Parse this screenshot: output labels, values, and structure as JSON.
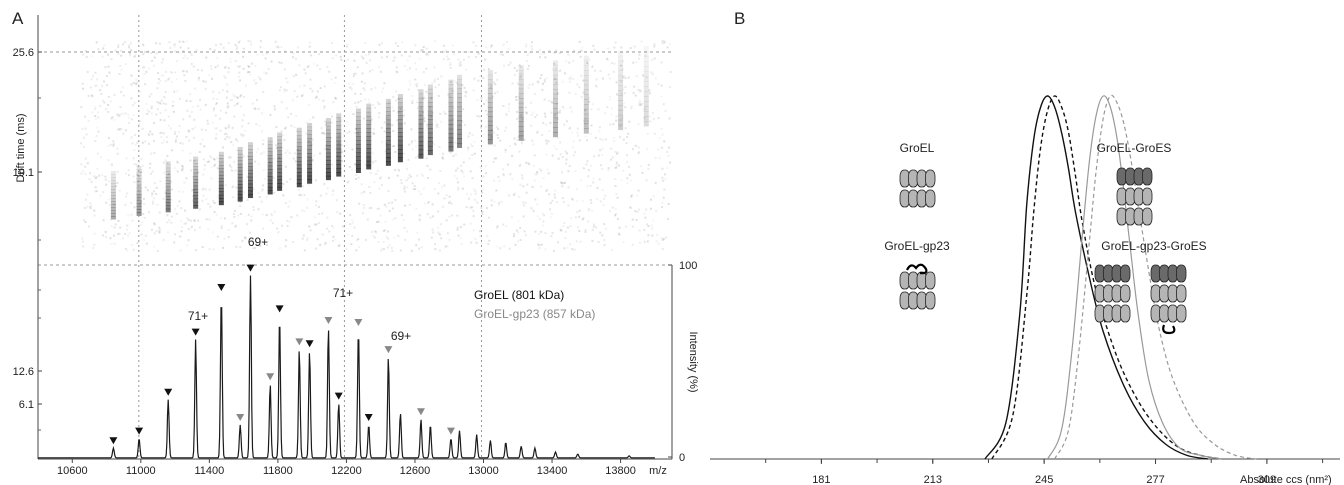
{
  "chart_data": [
    {
      "panel_label": "A",
      "type": "scatter",
      "xaxis": {
        "label": "m/z",
        "range": [
          10400,
          14100
        ],
        "ticks": [
          "10600",
          "11000",
          "11400",
          "11800",
          "12200",
          "12600",
          "13000",
          "13400",
          "13800"
        ]
      },
      "left_axis": {
        "label": "Drift time (ms)",
        "ticks": [
          "25.6",
          "19.1",
          "12.6",
          "6.1"
        ]
      },
      "right_axis": {
        "label": "Intensity (%)",
        "ticks": [
          "100",
          "0"
        ],
        "range": [
          0,
          100
        ]
      },
      "legend": [
        {
          "name": "GroEL (801 kDa)",
          "color": "#111111"
        },
        {
          "name": "GroEL-gp23 (857 kDa)",
          "color": "#888888"
        }
      ],
      "annotations": [
        "69+",
        "71+",
        "71+",
        "69+"
      ],
      "spectrum": {
        "peaks_groel": [
          {
            "x": 10840,
            "y": 5
          },
          {
            "x": 10990,
            "y": 10
          },
          {
            "x": 11160,
            "y": 30
          },
          {
            "x": 11320,
            "y": 61
          },
          {
            "x": 11470,
            "y": 84
          },
          {
            "x": 11640,
            "y": 94
          },
          {
            "x": 11810,
            "y": 73
          },
          {
            "x": 11985,
            "y": 55
          },
          {
            "x": 12155,
            "y": 28
          },
          {
            "x": 12330,
            "y": 17
          }
        ],
        "peaks_gp23": [
          {
            "x": 11580,
            "y": 17
          },
          {
            "x": 11755,
            "y": 38
          },
          {
            "x": 11925,
            "y": 56
          },
          {
            "x": 12095,
            "y": 67
          },
          {
            "x": 12270,
            "y": 66
          },
          {
            "x": 12445,
            "y": 52
          },
          {
            "x": 12635,
            "y": 20
          },
          {
            "x": 12810,
            "y": 10
          }
        ],
        "other_peaks": [
          {
            "x": 12515,
            "y": 23
          },
          {
            "x": 12690,
            "y": 17
          },
          {
            "x": 12860,
            "y": 14
          },
          {
            "x": 12960,
            "y": 12
          },
          {
            "x": 13040,
            "y": 9
          },
          {
            "x": 13130,
            "y": 8
          },
          {
            "x": 13220,
            "y": 6
          },
          {
            "x": 13300,
            "y": 5
          },
          {
            "x": 13420,
            "y": 3
          },
          {
            "x": 13550,
            "y": 2
          },
          {
            "x": 13850,
            "y": 1
          }
        ]
      },
      "drift_bands_mz": [
        10840,
        10990,
        11160,
        11320,
        11470,
        11580,
        11640,
        11755,
        11810,
        11925,
        11985,
        12095,
        12155,
        12270,
        12330,
        12445,
        12515,
        12635,
        12690,
        12810,
        12860,
        13040,
        13220,
        13420,
        13600,
        13800,
        13950
      ]
    },
    {
      "panel_label": "B",
      "type": "line",
      "xaxis": {
        "label": "Absolute ccs (nm²)",
        "ticks": [
          "181",
          "213",
          "245",
          "277",
          "309"
        ],
        "range": [
          149,
          330
        ]
      },
      "yaxis": {
        "label": "",
        "range": [
          0,
          1
        ]
      },
      "species": [
        {
          "label": "GroEL",
          "icon": "groel-barrel-icon",
          "line": "solid-black",
          "peak_ccs": 246
        },
        {
          "label": "GroEL-gp23",
          "icon": "groel-gp23-barrel-icon",
          "line": "dashed-black",
          "peak_ccs": 249
        },
        {
          "label": "GroEL-GroES",
          "icon": "groel-groes-barrel-icon",
          "line": "solid-grey",
          "peak_ccs": 263
        },
        {
          "label": "GroEL-gp23-GroES",
          "icon": "groel-gp23-groes-barrel-icon",
          "line": "dashed-grey",
          "peak_ccs": 264
        }
      ],
      "series": [
        {
          "x": [
            228,
            234,
            238,
            240,
            242,
            244,
            246,
            248,
            250,
            252,
            254,
            258,
            262,
            268,
            274,
            280,
            286,
            292
          ],
          "y": [
            0,
            0.1,
            0.4,
            0.7,
            0.88,
            0.97,
            1,
            0.97,
            0.9,
            0.8,
            0.68,
            0.5,
            0.35,
            0.2,
            0.1,
            0.04,
            0.01,
            0
          ]
        },
        {
          "x": [
            230,
            236,
            240,
            242,
            244,
            246,
            248,
            250,
            252,
            254,
            256,
            260,
            266,
            272,
            278,
            284,
            290,
            296
          ],
          "y": [
            0,
            0.12,
            0.45,
            0.68,
            0.86,
            0.96,
            1,
            0.97,
            0.9,
            0.78,
            0.65,
            0.46,
            0.28,
            0.16,
            0.08,
            0.03,
            0.01,
            0
          ]
        },
        {
          "x": [
            246,
            250,
            253,
            256,
            258,
            260,
            262,
            264,
            266,
            268,
            270,
            272,
            275,
            279,
            284,
            290,
            296
          ],
          "y": [
            0,
            0.08,
            0.3,
            0.62,
            0.82,
            0.95,
            1,
            0.97,
            0.88,
            0.73,
            0.56,
            0.4,
            0.22,
            0.1,
            0.03,
            0.01,
            0
          ]
        },
        {
          "x": [
            248,
            252,
            255,
            258,
            260,
            262,
            264,
            266,
            268,
            270,
            272,
            275,
            278,
            282,
            288,
            294,
            300,
            306
          ],
          "y": [
            0,
            0.08,
            0.3,
            0.6,
            0.8,
            0.94,
            1,
            0.98,
            0.92,
            0.82,
            0.7,
            0.52,
            0.36,
            0.22,
            0.1,
            0.04,
            0.01,
            0
          ]
        }
      ]
    }
  ]
}
